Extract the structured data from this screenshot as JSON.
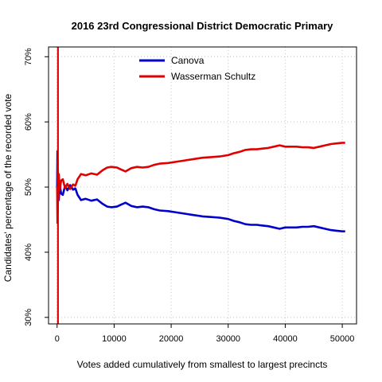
{
  "chart_data": {
    "type": "line",
    "title": "2016 23rd Congressional District Democratic Primary",
    "xlabel": "Votes added cumulatively from smallest to largest precincts",
    "ylabel": "Candidates' percentage of the recorded vote",
    "xlim": [
      -1500,
      52500
    ],
    "ylim": [
      29,
      71.5
    ],
    "x_ticks": [
      0,
      10000,
      20000,
      30000,
      40000,
      50000
    ],
    "x_tick_labels": [
      "0",
      "10000",
      "20000",
      "30000",
      "40000",
      "50000"
    ],
    "y_ticks": [
      30,
      40,
      50,
      60,
      70
    ],
    "y_tick_labels": [
      "30%",
      "40%",
      "50%",
      "60%",
      "70%"
    ],
    "grid": true,
    "legend_position": "top-center",
    "vertical_line_x": 150,
    "vertical_line_color": "#e00000",
    "series": [
      {
        "name": "Canova",
        "color": "#0000cc",
        "points": [
          [
            0,
            50
          ],
          [
            60,
            55.5
          ],
          [
            120,
            46
          ],
          [
            200,
            52
          ],
          [
            300,
            48
          ],
          [
            450,
            50.5
          ],
          [
            700,
            49
          ],
          [
            1000,
            48.8
          ],
          [
            1400,
            50.2
          ],
          [
            1800,
            49.5
          ],
          [
            2300,
            50.3
          ],
          [
            2800,
            49.6
          ],
          [
            3200,
            49.8
          ],
          [
            3600,
            48.8
          ],
          [
            4200,
            48
          ],
          [
            5000,
            48.2
          ],
          [
            6000,
            47.9
          ],
          [
            7000,
            48.1
          ],
          [
            8000,
            47.4
          ],
          [
            8800,
            47
          ],
          [
            9500,
            46.9
          ],
          [
            10500,
            47
          ],
          [
            11200,
            47.3
          ],
          [
            12000,
            47.6
          ],
          [
            13000,
            47.1
          ],
          [
            14000,
            46.9
          ],
          [
            15000,
            47
          ],
          [
            16000,
            46.9
          ],
          [
            17000,
            46.6
          ],
          [
            18000,
            46.4
          ],
          [
            19500,
            46.3
          ],
          [
            21000,
            46.1
          ],
          [
            22500,
            45.9
          ],
          [
            24000,
            45.7
          ],
          [
            25500,
            45.5
          ],
          [
            27000,
            45.4
          ],
          [
            28500,
            45.3
          ],
          [
            30000,
            45.1
          ],
          [
            31000,
            44.8
          ],
          [
            32000,
            44.6
          ],
          [
            33000,
            44.3
          ],
          [
            34000,
            44.2
          ],
          [
            35000,
            44.2
          ],
          [
            36000,
            44.1
          ],
          [
            37000,
            44
          ],
          [
            38000,
            43.8
          ],
          [
            39000,
            43.6
          ],
          [
            40000,
            43.8
          ],
          [
            41000,
            43.8
          ],
          [
            42000,
            43.8
          ],
          [
            43000,
            43.9
          ],
          [
            44000,
            43.9
          ],
          [
            45000,
            44
          ],
          [
            46000,
            43.8
          ],
          [
            47000,
            43.6
          ],
          [
            48000,
            43.4
          ],
          [
            49000,
            43.3
          ],
          [
            50000,
            43.2
          ],
          [
            50500,
            43.2
          ]
        ]
      },
      {
        "name": "Wasserman Schultz",
        "color": "#e00000",
        "points": [
          [
            0,
            50
          ],
          [
            60,
            44.5
          ],
          [
            120,
            54
          ],
          [
            200,
            48
          ],
          [
            300,
            52
          ],
          [
            450,
            49.5
          ],
          [
            700,
            51
          ],
          [
            1000,
            51.2
          ],
          [
            1400,
            49.8
          ],
          [
            1800,
            50.5
          ],
          [
            2300,
            49.7
          ],
          [
            2800,
            50.4
          ],
          [
            3200,
            50.2
          ],
          [
            3600,
            51.2
          ],
          [
            4200,
            52
          ],
          [
            5000,
            51.8
          ],
          [
            6000,
            52.1
          ],
          [
            7000,
            51.9
          ],
          [
            8000,
            52.6
          ],
          [
            8800,
            53
          ],
          [
            9500,
            53.1
          ],
          [
            10500,
            53
          ],
          [
            11200,
            52.7
          ],
          [
            12000,
            52.4
          ],
          [
            13000,
            52.9
          ],
          [
            14000,
            53.1
          ],
          [
            15000,
            53
          ],
          [
            16000,
            53.1
          ],
          [
            17000,
            53.4
          ],
          [
            18000,
            53.6
          ],
          [
            19500,
            53.7
          ],
          [
            21000,
            53.9
          ],
          [
            22500,
            54.1
          ],
          [
            24000,
            54.3
          ],
          [
            25500,
            54.5
          ],
          [
            27000,
            54.6
          ],
          [
            28500,
            54.7
          ],
          [
            30000,
            54.9
          ],
          [
            31000,
            55.2
          ],
          [
            32000,
            55.4
          ],
          [
            33000,
            55.7
          ],
          [
            34000,
            55.8
          ],
          [
            35000,
            55.8
          ],
          [
            36000,
            55.9
          ],
          [
            37000,
            56
          ],
          [
            38000,
            56.2
          ],
          [
            39000,
            56.4
          ],
          [
            40000,
            56.2
          ],
          [
            41000,
            56.2
          ],
          [
            42000,
            56.2
          ],
          [
            43000,
            56.1
          ],
          [
            44000,
            56.1
          ],
          [
            45000,
            56
          ],
          [
            46000,
            56.2
          ],
          [
            47000,
            56.4
          ],
          [
            48000,
            56.6
          ],
          [
            49000,
            56.7
          ],
          [
            50000,
            56.8
          ],
          [
            50500,
            56.8
          ]
        ]
      }
    ]
  }
}
